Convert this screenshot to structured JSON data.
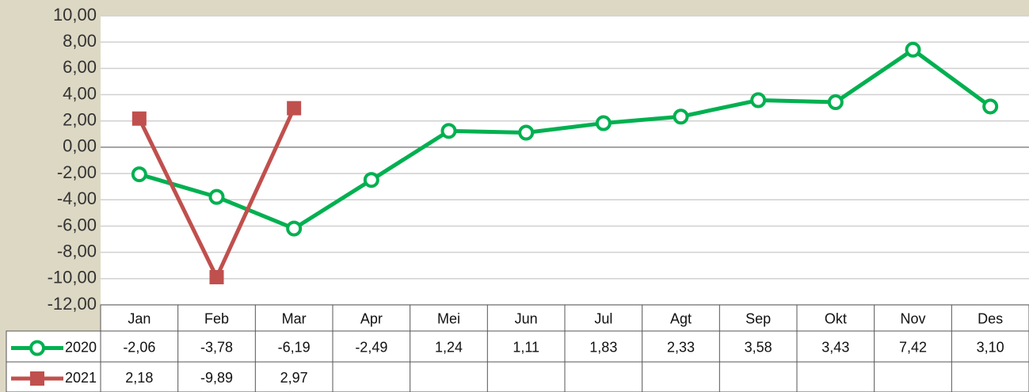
{
  "chart_data": {
    "type": "line",
    "categories": [
      "Jan",
      "Feb",
      "Mar",
      "Apr",
      "Mei",
      "Jun",
      "Jul",
      "Agt",
      "Sep",
      "Okt",
      "Nov",
      "Des"
    ],
    "series": [
      {
        "name": "2020",
        "color": "#00b050",
        "marker": "circle",
        "values": [
          -2.06,
          -3.78,
          -6.19,
          -2.49,
          1.24,
          1.11,
          1.83,
          2.33,
          3.58,
          3.43,
          7.42,
          3.1
        ],
        "value_labels": [
          "-2,06",
          "-3,78",
          "-6,19",
          "-2,49",
          "1,24",
          "1,11",
          "1,83",
          "2,33",
          "3,58",
          "3,43",
          "7,42",
          "3,10"
        ]
      },
      {
        "name": "2021",
        "color": "#c0504d",
        "marker": "square",
        "values": [
          2.18,
          -9.89,
          2.97,
          null,
          null,
          null,
          null,
          null,
          null,
          null,
          null,
          null
        ],
        "value_labels": [
          "2,18",
          "-9,89",
          "2,97",
          null,
          null,
          null,
          null,
          null,
          null,
          null,
          null,
          null
        ]
      }
    ],
    "ylim": [
      -12,
      10
    ],
    "yticks": [
      {
        "value": -12,
        "label": "-12,00"
      },
      {
        "value": -10,
        "label": "-10,00"
      },
      {
        "value": -8,
        "label": "-8,00"
      },
      {
        "value": -6,
        "label": "-6,00"
      },
      {
        "value": -4,
        "label": "-4,00"
      },
      {
        "value": -2,
        "label": "-2,00"
      },
      {
        "value": 0,
        "label": "0,00"
      },
      {
        "value": 2,
        "label": "2,00"
      },
      {
        "value": 4,
        "label": "4,00"
      },
      {
        "value": 6,
        "label": "6,00"
      },
      {
        "value": 8,
        "label": "8,00"
      },
      {
        "value": 10,
        "label": "10,00"
      }
    ],
    "grid": true,
    "data_table": true
  }
}
